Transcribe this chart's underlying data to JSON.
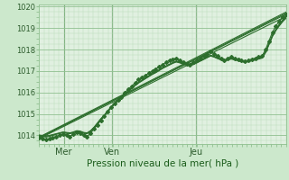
{
  "title": "",
  "xlabel": "Pression niveau de la mer( hPa )",
  "bg_color": "#cce8cc",
  "plot_bg_color": "#e0f0e0",
  "line_color": "#2d6e2d",
  "grid_major_color": "#90c090",
  "grid_minor_color": "#b8d8b8",
  "axis_label_color": "#1a5c1a",
  "tick_label_color": "#2d5c2d",
  "vline_color": "#4a7a4a",
  "ylim": [
    1013.6,
    1020.1
  ],
  "yticks": [
    1014,
    1015,
    1016,
    1017,
    1018,
    1019,
    1020
  ],
  "day_labels": [
    "Mer",
    "Ven",
    "Jeu"
  ],
  "day_positions": [
    0.1,
    0.295,
    0.635
  ],
  "n_points": 73,
  "main_series": [
    1013.9,
    1013.85,
    1013.8,
    1013.85,
    1013.9,
    1013.95,
    1014.0,
    1014.05,
    1014.0,
    1013.95,
    1014.05,
    1014.15,
    1014.1,
    1014.0,
    1013.95,
    1014.1,
    1014.3,
    1014.5,
    1014.7,
    1014.9,
    1015.1,
    1015.3,
    1015.5,
    1015.65,
    1015.8,
    1016.0,
    1016.15,
    1016.3,
    1016.45,
    1016.6,
    1016.7,
    1016.8,
    1016.9,
    1017.0,
    1017.1,
    1017.2,
    1017.3,
    1017.4,
    1017.5,
    1017.55,
    1017.6,
    1017.5,
    1017.4,
    1017.35,
    1017.3,
    1017.4,
    1017.5,
    1017.6,
    1017.7,
    1017.8,
    1017.9,
    1017.8,
    1017.7,
    1017.6,
    1017.5,
    1017.6,
    1017.65,
    1017.6,
    1017.55,
    1017.5,
    1017.45,
    1017.5,
    1017.55,
    1017.6,
    1017.65,
    1017.7,
    1018.0,
    1018.4,
    1018.8,
    1019.1,
    1019.3,
    1019.5,
    1019.65
  ],
  "smooth_series1": [
    1014.0,
    1013.95,
    1013.92,
    1013.95,
    1014.0,
    1014.05,
    1014.1,
    1014.12,
    1014.1,
    1014.08,
    1014.12,
    1014.18,
    1014.15,
    1014.1,
    1014.08,
    1014.18,
    1014.32,
    1014.52,
    1014.72,
    1014.9,
    1015.1,
    1015.28,
    1015.46,
    1015.6,
    1015.74,
    1015.9,
    1016.04,
    1016.18,
    1016.32,
    1016.44,
    1016.54,
    1016.64,
    1016.74,
    1016.84,
    1016.92,
    1017.02,
    1017.12,
    1017.2,
    1017.28,
    1017.36,
    1017.42,
    1017.38,
    1017.32,
    1017.28,
    1017.25,
    1017.3,
    1017.38,
    1017.46,
    1017.54,
    1017.62,
    1017.7,
    1017.65,
    1017.58,
    1017.52,
    1017.46,
    1017.52,
    1017.56,
    1017.52,
    1017.48,
    1017.44,
    1017.4,
    1017.44,
    1017.48,
    1017.52,
    1017.56,
    1017.6,
    1017.85,
    1018.22,
    1018.6,
    1018.88,
    1019.1,
    1019.3,
    1019.46
  ],
  "smooth_series2": [
    1014.0,
    1013.98,
    1013.96,
    1013.98,
    1014.02,
    1014.06,
    1014.1,
    1014.14,
    1014.12,
    1014.1,
    1014.14,
    1014.2,
    1014.18,
    1014.12,
    1014.1,
    1014.2,
    1014.35,
    1014.55,
    1014.75,
    1014.92,
    1015.12,
    1015.3,
    1015.48,
    1015.62,
    1015.76,
    1015.92,
    1016.06,
    1016.2,
    1016.34,
    1016.46,
    1016.56,
    1016.66,
    1016.76,
    1016.86,
    1016.94,
    1017.04,
    1017.14,
    1017.22,
    1017.3,
    1017.38,
    1017.44,
    1017.4,
    1017.34,
    1017.3,
    1017.27,
    1017.32,
    1017.4,
    1017.48,
    1017.56,
    1017.64,
    1017.72,
    1017.67,
    1017.6,
    1017.54,
    1017.48,
    1017.54,
    1017.58,
    1017.54,
    1017.5,
    1017.46,
    1017.42,
    1017.46,
    1017.5,
    1017.54,
    1017.58,
    1017.62,
    1017.88,
    1018.25,
    1018.64,
    1018.92,
    1019.14,
    1019.34,
    1019.5
  ],
  "smooth_series3": [
    1014.02,
    1014.0,
    1013.98,
    1014.0,
    1014.04,
    1014.08,
    1014.12,
    1014.16,
    1014.14,
    1014.12,
    1014.16,
    1014.22,
    1014.2,
    1014.14,
    1014.12,
    1014.22,
    1014.38,
    1014.58,
    1014.78,
    1014.95,
    1015.15,
    1015.33,
    1015.5,
    1015.64,
    1015.78,
    1015.94,
    1016.08,
    1016.22,
    1016.36,
    1016.48,
    1016.58,
    1016.68,
    1016.78,
    1016.88,
    1016.96,
    1017.06,
    1017.16,
    1017.24,
    1017.32,
    1017.4,
    1017.46,
    1017.42,
    1017.36,
    1017.32,
    1017.29,
    1017.34,
    1017.42,
    1017.5,
    1017.58,
    1017.66,
    1017.74,
    1017.69,
    1017.62,
    1017.56,
    1017.5,
    1017.56,
    1017.6,
    1017.56,
    1017.52,
    1017.48,
    1017.44,
    1017.48,
    1017.52,
    1017.56,
    1017.6,
    1017.64,
    1017.9,
    1018.28,
    1018.67,
    1018.95,
    1019.18,
    1019.38,
    1019.54
  ],
  "trend_lines": [
    [
      1013.85,
      1019.55
    ],
    [
      1013.9,
      1019.65
    ],
    [
      1013.88,
      1019.7
    ],
    [
      1013.92,
      1019.75
    ]
  ],
  "marker_style": "D",
  "marker_size": 2.0,
  "linewidth": 0.8,
  "figsize": [
    3.2,
    2.0
  ],
  "dpi": 100
}
